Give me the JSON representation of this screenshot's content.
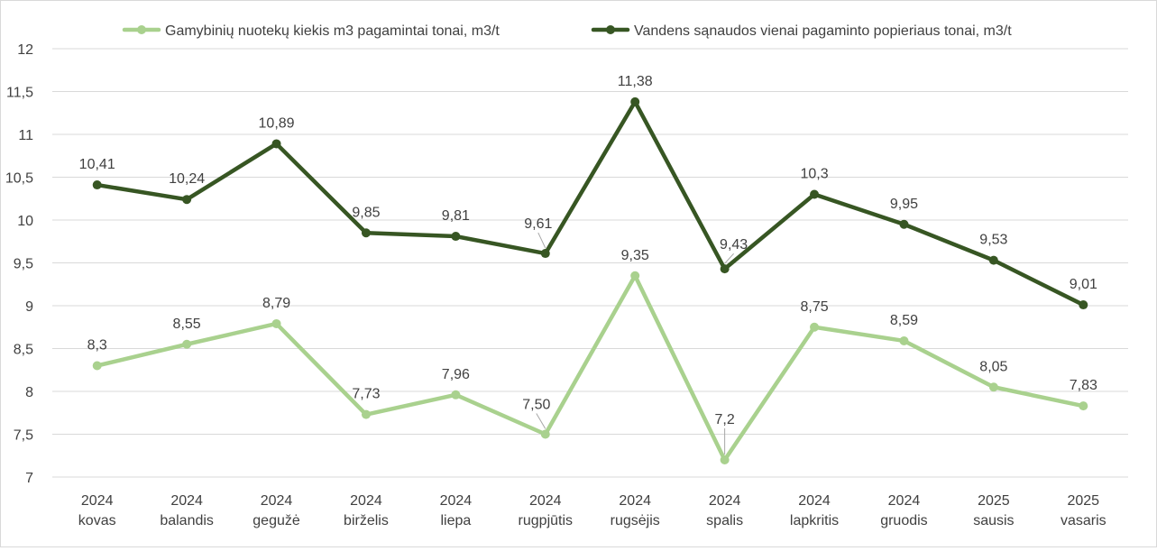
{
  "chart_data": {
    "type": "line",
    "title": "",
    "xlabel": "",
    "ylabel": "",
    "ylim": [
      7,
      12
    ],
    "y_ticks": [
      "7",
      "7,5",
      "8",
      "8,5",
      "9",
      "9,5",
      "10",
      "10,5",
      "11",
      "11,5",
      "12"
    ],
    "y_tick_values": [
      7,
      7.5,
      8,
      8.5,
      9,
      9.5,
      10,
      10.5,
      11,
      11.5,
      12
    ],
    "grid": true,
    "legend_position": "top",
    "categories": [
      {
        "year": "2024",
        "month": "kovas"
      },
      {
        "year": "2024",
        "month": "balandis"
      },
      {
        "year": "2024",
        "month": "gegužė"
      },
      {
        "year": "2024",
        "month": "birželis"
      },
      {
        "year": "2024",
        "month": "liepa"
      },
      {
        "year": "2024",
        "month": "rugpjūtis"
      },
      {
        "year": "2024",
        "month": "rugsėjis"
      },
      {
        "year": "2024",
        "month": "spalis"
      },
      {
        "year": "2024",
        "month": "lapkritis"
      },
      {
        "year": "2024",
        "month": "gruodis"
      },
      {
        "year": "2025",
        "month": "sausis"
      },
      {
        "year": "2025",
        "month": "vasaris"
      }
    ],
    "series": [
      {
        "name": "Gamybinių nuotekų kiekis m3 pagamintai tonai, m3/t",
        "color": "#a9d18e",
        "values": [
          8.3,
          8.55,
          8.79,
          7.73,
          7.96,
          7.5,
          9.35,
          7.2,
          8.75,
          8.59,
          8.05,
          7.83
        ],
        "labels": [
          "8,3",
          "8,55",
          "8,79",
          "7,73",
          "7,96",
          "7,50",
          "9,35",
          "7,2",
          "8,75",
          "8,59",
          "8,05",
          "7,83"
        ]
      },
      {
        "name": "Vandens sąnaudos vienai pagaminto popieriaus tonai, m3/t",
        "color": "#375623",
        "values": [
          10.41,
          10.24,
          10.89,
          9.85,
          9.81,
          9.61,
          11.38,
          9.43,
          10.3,
          9.95,
          9.53,
          9.01
        ],
        "labels": [
          "10,41",
          "10,24",
          "10,89",
          "9,85",
          "9,81",
          "9,61",
          "11,38",
          "9,43",
          "10,3",
          "9,95",
          "9,53",
          "9,01"
        ]
      }
    ]
  }
}
